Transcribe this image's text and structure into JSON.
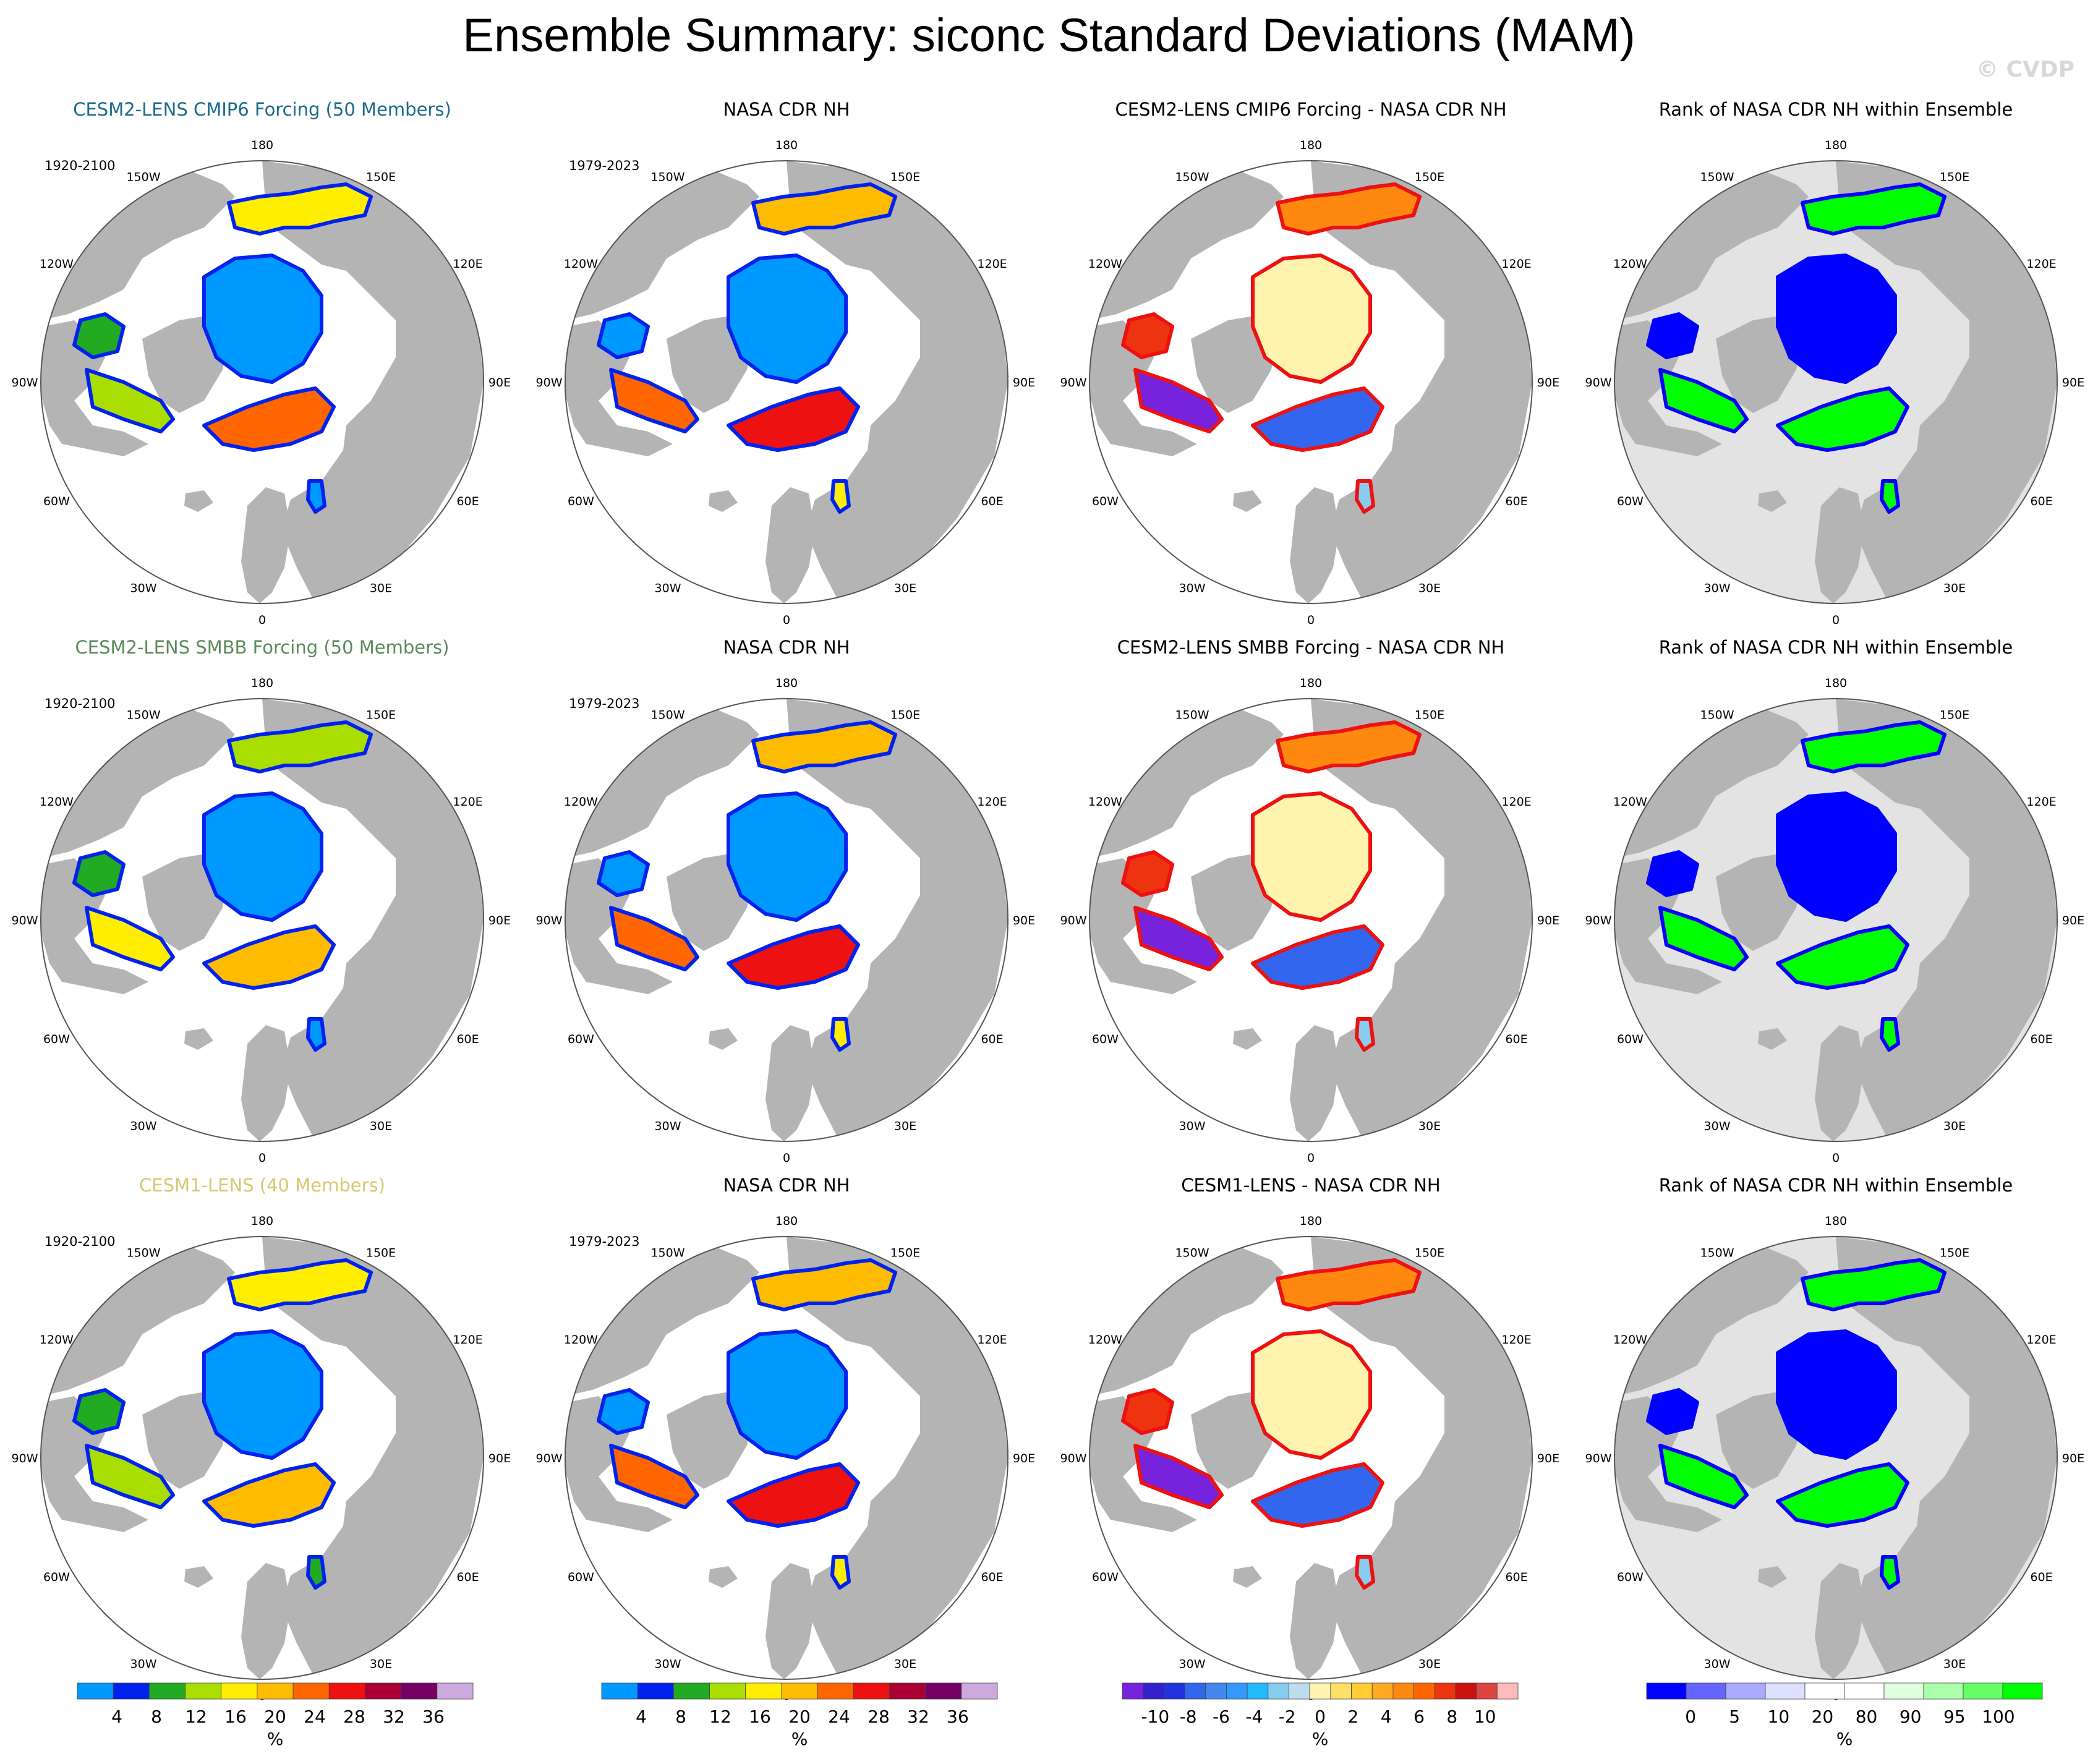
{
  "title": "Ensemble Summary: siconc Standard Deviations (MAM)",
  "watermark": "© CVDP",
  "colors": {
    "land": "#b4b4b4",
    "ocean": "#ffffff",
    "rank_land": "#b4b4b4",
    "rank_ocean": "#e3e3e3",
    "cmip6_title": "#1a6b8a",
    "smbb_title": "#5a8a5a",
    "lens1_title": "#d8c870"
  },
  "lon_labels": [
    "180",
    "150E",
    "120E",
    "90E",
    "60E",
    "30E",
    "0",
    "30W",
    "60W",
    "90W",
    "120W",
    "150W"
  ],
  "rows": [
    {
      "model_title": "CESM2-LENS CMIP6 Forcing (50 Members)",
      "model_title_color": "#1a6b8a",
      "model_period": "1920-2100",
      "obs_title": "NASA CDR NH",
      "obs_period": "1979-2023",
      "diff_title": "CESM2-LENS CMIP6 Forcing - NASA CDR NH",
      "rank_title": "Rank of NASA CDR NH within Ensemble"
    },
    {
      "model_title": "CESM2-LENS SMBB Forcing (50 Members)",
      "model_title_color": "#5a8a5a",
      "model_period": "1920-2100",
      "obs_title": "NASA CDR NH",
      "obs_period": "1979-2023",
      "diff_title": "CESM2-LENS SMBB Forcing - NASA CDR NH",
      "rank_title": "Rank of NASA CDR NH within Ensemble"
    },
    {
      "model_title": "CESM1-LENS (40 Members)",
      "model_title_color": "#d8c870",
      "model_period": "1920-2100",
      "obs_title": "NASA CDR NH",
      "obs_period": "1979-2023",
      "diff_title": "CESM1-LENS - NASA CDR NH",
      "rank_title": "Rank of NASA CDR NH within Ensemble"
    }
  ],
  "colorbars": {
    "std": {
      "colors": [
        "#0099ff",
        "#0022ee",
        "#22aa22",
        "#aadd00",
        "#ffee00",
        "#ffbb00",
        "#ff6600",
        "#ee1111",
        "#aa0033",
        "#770066",
        "#ccaadd"
      ],
      "labels": [
        "4",
        "8",
        "12",
        "16",
        "20",
        "24",
        "28",
        "32",
        "36"
      ],
      "unit": "%"
    },
    "diff": {
      "colors": [
        "#7722dd",
        "#3322cc",
        "#2233dd",
        "#3366ee",
        "#4488ee",
        "#3399ff",
        "#22bbff",
        "#88ccee",
        "#bbddee",
        "#fff3b0",
        "#ffe066",
        "#ffcc33",
        "#ffaa22",
        "#ff8811",
        "#ff6600",
        "#ee3311",
        "#cc1111",
        "#dd4444",
        "#ffbbbb"
      ],
      "labels": [
        "-10",
        "-8",
        "-6",
        "-4",
        "-2",
        "0",
        "2",
        "4",
        "6",
        "8",
        "10"
      ],
      "unit": "%"
    },
    "rank": {
      "colors": [
        "#0000ff",
        "#6666ff",
        "#aaaaff",
        "#dde0ff",
        "#ffffff",
        "#ffffff",
        "#ddffdd",
        "#aaffaa",
        "#66ff66",
        "#00ff00"
      ],
      "labels": [
        "0",
        "5",
        "10",
        "20",
        "80",
        "90",
        "95",
        "100"
      ],
      "unit": "%"
    }
  }
}
